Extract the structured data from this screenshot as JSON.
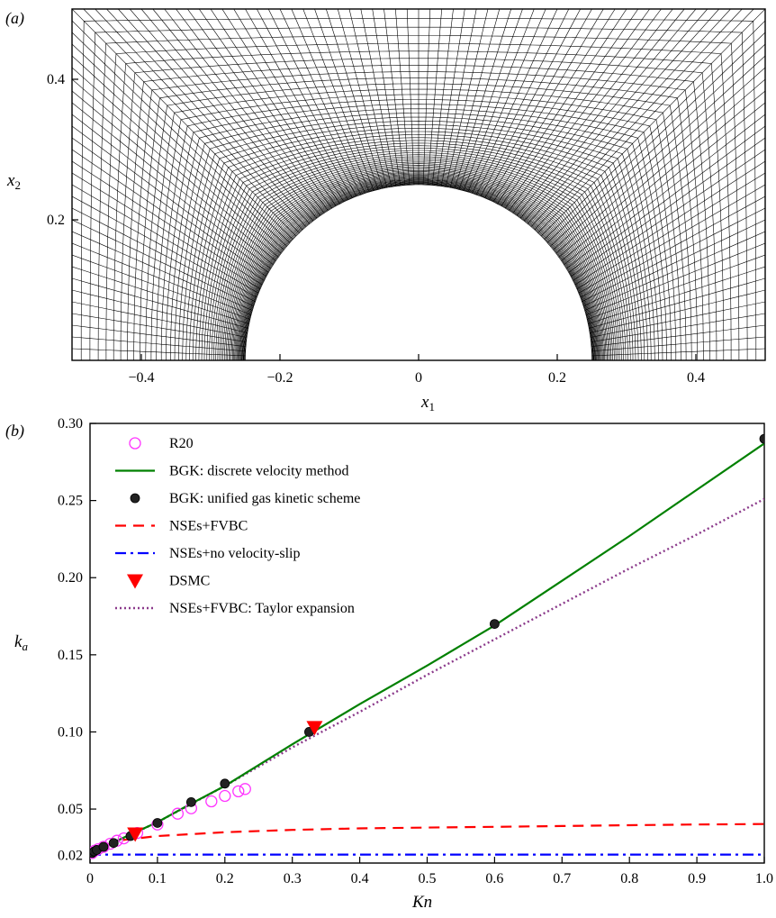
{
  "panel_a": {
    "label": "(a)",
    "xlabel": "x1",
    "ylabel": "x2",
    "x_ticks": [
      "−0.4",
      "−0.2",
      "0",
      "0.2",
      "0.4"
    ],
    "y_ticks": [
      "0.2",
      "0.4"
    ]
  },
  "panel_b": {
    "label": "(b)",
    "xlabel": "Kn",
    "ylabel": "ka",
    "x_ticks": [
      "0",
      "0.1",
      "0.2",
      "0.3",
      "0.4",
      "0.5",
      "0.6",
      "0.7",
      "0.8",
      "0.9",
      "1.0"
    ],
    "y_ticks": [
      "0.02",
      "0.05",
      "0.10",
      "0.15",
      "0.20",
      "0.25",
      "0.30"
    ]
  },
  "chart_data": [
    {
      "type": "mesh",
      "description_of_geometry": "structured body-fitted grid around a semicircular cylinder",
      "cylinder_radius": 0.25,
      "xlim": [
        -0.5,
        0.5
      ],
      "ylim": [
        0.0,
        0.5
      ],
      "xlabel": "x1",
      "ylabel": "x2",
      "x_tick_values": [
        -0.4,
        -0.2,
        0,
        0.2,
        0.4
      ],
      "y_tick_values": [
        0.2,
        0.4
      ]
    },
    {
      "type": "line",
      "xlabel": "Kn",
      "ylabel": "ka",
      "xlim": [
        0,
        1.0
      ],
      "ylim": [
        0.015,
        0.3
      ],
      "x_tick_values": [
        0,
        0.1,
        0.2,
        0.3,
        0.4,
        0.5,
        0.6,
        0.7,
        0.8,
        0.9,
        1.0
      ],
      "y_tick_values": [
        0.02,
        0.05,
        0.1,
        0.15,
        0.2,
        0.25,
        0.3
      ],
      "legend_position": "top-left",
      "series": [
        {
          "name": "R20",
          "style": "open-circle",
          "color": "#ff33ff",
          "x": [
            0.003,
            0.007,
            0.012,
            0.02,
            0.03,
            0.04,
            0.05,
            0.07,
            0.1,
            0.13,
            0.15,
            0.18,
            0.2,
            0.22,
            0.23
          ],
          "y": [
            0.0215,
            0.023,
            0.024,
            0.0255,
            0.0275,
            0.0295,
            0.031,
            0.0345,
            0.04,
            0.047,
            0.0505,
            0.055,
            0.0585,
            0.0615,
            0.063
          ]
        },
        {
          "name": "BGK: discrete velocity method",
          "style": "solid",
          "color": "#008000",
          "x": [
            0,
            0.05,
            0.1,
            0.15,
            0.2,
            0.3,
            0.4,
            0.5,
            0.6,
            0.7,
            0.8,
            0.9,
            1.0
          ],
          "y": [
            0.021,
            0.0315,
            0.0415,
            0.0535,
            0.065,
            0.092,
            0.118,
            0.143,
            0.169,
            0.198,
            0.227,
            0.257,
            0.287
          ]
        },
        {
          "name": "BGK: unified gas kinetic scheme",
          "style": "filled-circle",
          "color": "#222222",
          "x": [
            0.003,
            0.006,
            0.01,
            0.02,
            0.035,
            0.06,
            0.1,
            0.15,
            0.2,
            0.325,
            0.6,
            1.0
          ],
          "y": [
            0.0215,
            0.0225,
            0.0235,
            0.0255,
            0.028,
            0.0325,
            0.041,
            0.0545,
            0.0665,
            0.1,
            0.17,
            0.29
          ]
        },
        {
          "name": "NSEs+FVBC",
          "style": "dashed",
          "color": "#ff0000",
          "x": [
            0,
            0.02,
            0.05,
            0.1,
            0.2,
            0.3,
            0.4,
            0.5,
            0.6,
            0.7,
            0.8,
            0.9,
            1.0
          ],
          "y": [
            0.021,
            0.026,
            0.03,
            0.0325,
            0.035,
            0.0365,
            0.0375,
            0.038,
            0.0385,
            0.039,
            0.0395,
            0.04,
            0.0403
          ]
        },
        {
          "name": "NSEs+no velocity-slip",
          "style": "dash-dot",
          "color": "#0000ff",
          "x": [
            0,
            1.0
          ],
          "y": [
            0.0205,
            0.0205
          ]
        },
        {
          "name": "DSMC",
          "style": "filled-triangle-down",
          "color": "#ff0000",
          "x": [
            0.067,
            0.333
          ],
          "y": [
            0.034,
            0.103
          ]
        },
        {
          "name": "NSEs+FVBC: Taylor expansion",
          "style": "dotted",
          "color": "#8b3a8b",
          "x": [
            0,
            0.1,
            0.2,
            0.3,
            0.4,
            0.5,
            0.6,
            0.7,
            0.8,
            0.9,
            1.0
          ],
          "y": [
            0.021,
            0.0415,
            0.065,
            0.09,
            0.113,
            0.137,
            0.16,
            0.183,
            0.206,
            0.228,
            0.251
          ]
        }
      ]
    }
  ]
}
